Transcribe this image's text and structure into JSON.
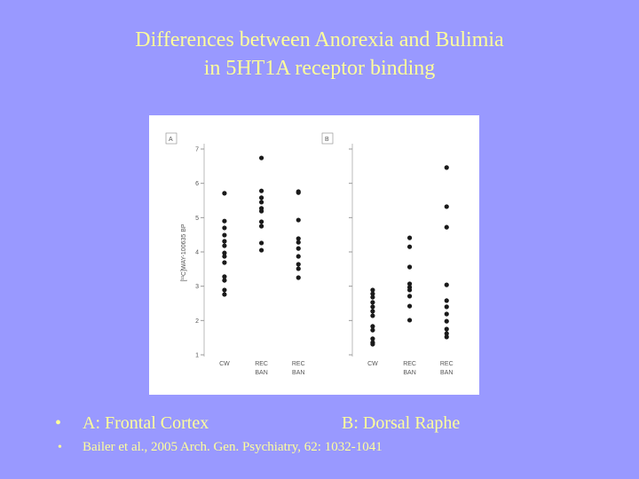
{
  "slide": {
    "title": [
      "Differences between Anorexia and Bulimia",
      "in 5HT1A receptor binding"
    ],
    "bullets": [
      "A: Frontal Cortex",
      "B: Dorsal Raphe"
    ],
    "citation": "Bailer et al., 2005 Arch. Gen. Psychiatry, 62: 1032-1041"
  },
  "chart_data": [
    {
      "type": "strip",
      "panel": "A",
      "y_label": "[¹¹C]WAY-100635 BP",
      "categories": [
        [
          "CW"
        ],
        [
          "REC",
          "BAN"
        ],
        [
          "REC",
          "BAN"
        ]
      ],
      "values": [
        [
          5.71,
          4.9,
          4.7,
          4.49,
          4.31,
          4.18,
          3.97,
          3.87,
          3.69,
          3.28,
          3.17,
          2.89,
          2.76
        ],
        [
          6.74,
          5.78,
          5.58,
          5.45,
          5.27,
          5.19,
          4.88,
          4.75,
          4.26,
          4.05
        ],
        [
          5.76,
          5.73,
          4.93,
          4.39,
          4.28,
          4.1,
          3.87,
          3.64,
          3.51,
          3.25
        ]
      ],
      "ylim": [
        1,
        7
      ],
      "yticks": [
        1,
        2,
        3,
        4,
        5,
        6,
        7
      ],
      "color": "#1a1a1a"
    },
    {
      "type": "strip",
      "panel": "B",
      "categories": [
        [
          "CW"
        ],
        [
          "REC",
          "BAN"
        ],
        [
          "REC",
          "BAN"
        ]
      ],
      "values": [
        [
          2.89,
          2.78,
          2.68,
          2.53,
          2.4,
          2.27,
          2.14,
          1.83,
          1.72,
          1.47,
          1.36,
          1.31
        ],
        [
          4.41,
          4.15,
          3.56,
          3.07,
          2.97,
          2.89,
          2.71,
          2.42,
          2.01
        ],
        [
          6.46,
          5.32,
          4.72,
          3.04,
          2.58,
          2.4,
          2.19,
          1.98,
          1.75,
          1.62,
          1.52
        ]
      ],
      "ylim": [
        1,
        7
      ],
      "yticks": [
        1,
        2,
        3,
        4,
        5,
        6,
        7
      ],
      "color": "#1a1a1a"
    }
  ]
}
